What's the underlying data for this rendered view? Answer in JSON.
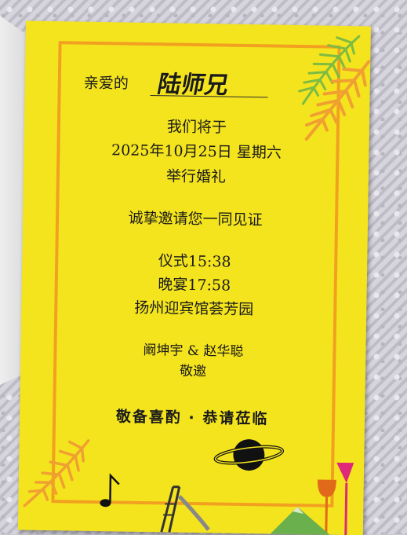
{
  "card": {
    "salutation": "亲爱的",
    "guest_name": "陆师兄",
    "line1": "我们将于",
    "date": "2025年10月25日  星期六",
    "line3": "举行婚礼",
    "invite": "诚挚邀请您一同见证",
    "ceremony": "仪式15:38",
    "banquet": "晚宴17:58",
    "venue": "扬州迎宾馆荟芳园",
    "hosts": "阚坤宇 & 赵华聪",
    "respect": "敬邀",
    "blessing": "敬备喜酌 · 恭请莅临"
  },
  "colors": {
    "card_yellow": "#f4e41e",
    "frame_orange": "#f2a020",
    "fern_green": "#7dbb42",
    "fern_orange": "#f0a030"
  }
}
